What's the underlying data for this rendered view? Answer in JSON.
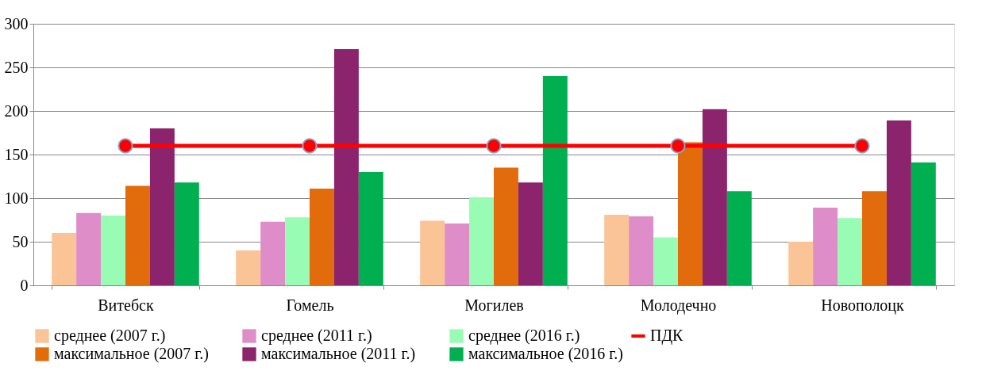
{
  "chart_data": {
    "type": "bar",
    "categories": [
      "Витебск",
      "Гомель",
      "Могилев",
      "Молодечно",
      "Новополоцк"
    ],
    "series": [
      {
        "name": "среднее (2007 г.)",
        "color": "#fac496",
        "values": [
          60,
          40,
          74,
          81,
          50
        ]
      },
      {
        "name": "среднее (2011 г.)",
        "color": "#df8dc9",
        "values": [
          83,
          73,
          71,
          79,
          89
        ]
      },
      {
        "name": "среднее (2016 г.)",
        "color": "#98fcb5",
        "values": [
          80,
          78,
          101,
          55,
          77
        ]
      },
      {
        "name": "максимальное (2007 г.)",
        "color": "#e26b0b",
        "values": [
          114,
          111,
          135,
          164,
          108
        ]
      },
      {
        "name": "максимальное (2011 г.)",
        "color": "#8b246c",
        "values": [
          180,
          271,
          118,
          202,
          189
        ]
      },
      {
        "name": "максимальное (2016 г.)",
        "color": "#00af4f",
        "values": [
          118,
          130,
          240,
          108,
          141
        ]
      },
      {
        "name": "ПДК",
        "type": "line",
        "color": "#ff0000",
        "marker": "circle",
        "values": [
          160,
          160,
          160,
          160,
          160
        ]
      }
    ],
    "ylim": [
      0,
      300
    ],
    "yticks": [
      0,
      50,
      100,
      150,
      200,
      250,
      300
    ],
    "grid": "y",
    "legend": "bottom"
  }
}
